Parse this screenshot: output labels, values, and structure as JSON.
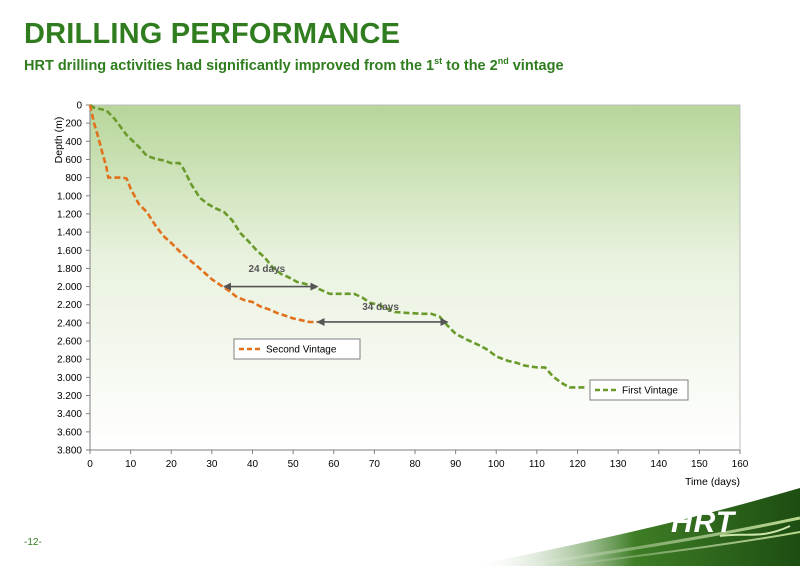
{
  "slide": {
    "title": "DRILLING PERFORMANCE",
    "subtitle_parts": [
      "HRT drilling activities had significantly improved from the 1",
      "st",
      " to the 2",
      "nd",
      " vintage"
    ],
    "page_number": "-12-",
    "logo_text": "HRT"
  },
  "chart_data": {
    "type": "line",
    "xlabel": "Time (days)",
    "ylabel": "Depth (m)",
    "xlim": [
      0,
      160
    ],
    "ylim": [
      0,
      3800
    ],
    "y_inverted": true,
    "x_ticks": [
      0,
      10,
      20,
      30,
      40,
      50,
      60,
      70,
      80,
      90,
      100,
      110,
      120,
      130,
      140,
      150,
      160
    ],
    "x_tick_labels": [
      "0",
      "10",
      "20",
      "30",
      "40",
      "50",
      "60",
      "70",
      "80",
      "90",
      "100",
      "110",
      "120",
      "130",
      "140",
      "150",
      "160"
    ],
    "y_ticks": [
      0,
      200,
      400,
      600,
      800,
      1000,
      1200,
      1400,
      1600,
      1800,
      2000,
      2200,
      2400,
      2600,
      2800,
      3000,
      3200,
      3400,
      3600,
      3800
    ],
    "y_tick_labels": [
      "0",
      "200",
      "400",
      "600",
      "800",
      "1.000",
      "1.200",
      "1.400",
      "1.600",
      "1.800",
      "2.000",
      "2.200",
      "2.400",
      "2.600",
      "2.800",
      "3.000",
      "3.200",
      "3.400",
      "3.600",
      "3.800"
    ],
    "series": [
      {
        "name": "First Vintage",
        "color": "#6a9a2c",
        "points": [
          [
            0,
            0
          ],
          [
            1,
            30
          ],
          [
            4,
            60
          ],
          [
            6,
            150
          ],
          [
            9,
            330
          ],
          [
            12,
            460
          ],
          [
            14,
            560
          ],
          [
            16,
            590
          ],
          [
            18,
            610
          ],
          [
            20,
            640
          ],
          [
            22,
            640
          ],
          [
            23,
            700
          ],
          [
            25,
            880
          ],
          [
            27,
            1020
          ],
          [
            29,
            1090
          ],
          [
            31,
            1140
          ],
          [
            33,
            1180
          ],
          [
            35,
            1270
          ],
          [
            37,
            1410
          ],
          [
            39,
            1500
          ],
          [
            41,
            1600
          ],
          [
            43,
            1680
          ],
          [
            45,
            1790
          ],
          [
            47,
            1860
          ],
          [
            49,
            1900
          ],
          [
            51,
            1950
          ],
          [
            53,
            1970
          ],
          [
            55,
            2000
          ],
          [
            57,
            2040
          ],
          [
            59,
            2080
          ],
          [
            62,
            2080
          ],
          [
            65,
            2080
          ],
          [
            67,
            2120
          ],
          [
            69,
            2180
          ],
          [
            71,
            2200
          ],
          [
            73,
            2240
          ],
          [
            75,
            2280
          ],
          [
            78,
            2290
          ],
          [
            82,
            2300
          ],
          [
            84,
            2300
          ],
          [
            86,
            2330
          ],
          [
            88,
            2430
          ],
          [
            90,
            2520
          ],
          [
            93,
            2590
          ],
          [
            96,
            2650
          ],
          [
            98,
            2700
          ],
          [
            100,
            2770
          ],
          [
            103,
            2820
          ],
          [
            105,
            2840
          ],
          [
            107,
            2870
          ],
          [
            110,
            2890
          ],
          [
            112,
            2890
          ],
          [
            114,
            2990
          ],
          [
            116,
            3060
          ],
          [
            118,
            3110
          ],
          [
            122,
            3110
          ]
        ]
      },
      {
        "name": "Second Vintage",
        "color": "#e2711d",
        "points": [
          [
            0,
            0
          ],
          [
            1,
            200
          ],
          [
            2,
            350
          ],
          [
            3,
            520
          ],
          [
            4,
            680
          ],
          [
            4.5,
            800
          ],
          [
            6,
            800
          ],
          [
            8,
            800
          ],
          [
            9,
            810
          ],
          [
            10,
            920
          ],
          [
            12,
            1090
          ],
          [
            14,
            1180
          ],
          [
            16,
            1320
          ],
          [
            18,
            1440
          ],
          [
            20,
            1520
          ],
          [
            22,
            1610
          ],
          [
            24,
            1690
          ],
          [
            26,
            1760
          ],
          [
            28,
            1840
          ],
          [
            30,
            1920
          ],
          [
            32,
            1980
          ],
          [
            34,
            2040
          ],
          [
            36,
            2110
          ],
          [
            38,
            2150
          ],
          [
            40,
            2170
          ],
          [
            42,
            2220
          ],
          [
            44,
            2250
          ],
          [
            46,
            2290
          ],
          [
            48,
            2320
          ],
          [
            50,
            2350
          ],
          [
            52,
            2370
          ],
          [
            54,
            2390
          ],
          [
            56,
            2390
          ]
        ]
      }
    ],
    "annotations": [
      {
        "label": "24 days",
        "x1": 33,
        "x2": 56,
        "y": 2000,
        "label_x": 39,
        "label_y": 1840
      },
      {
        "label": "34 days",
        "x1": 56,
        "x2": 88,
        "y": 2390,
        "label_x": 67,
        "label_y": 2260
      }
    ],
    "legends": [
      {
        "series": "Second Vintage",
        "placement": "below the second vintage curve, left side"
      },
      {
        "series": "First Vintage",
        "placement": "right of the first vintage curve end"
      }
    ],
    "grid": false,
    "background": "green gradient"
  }
}
